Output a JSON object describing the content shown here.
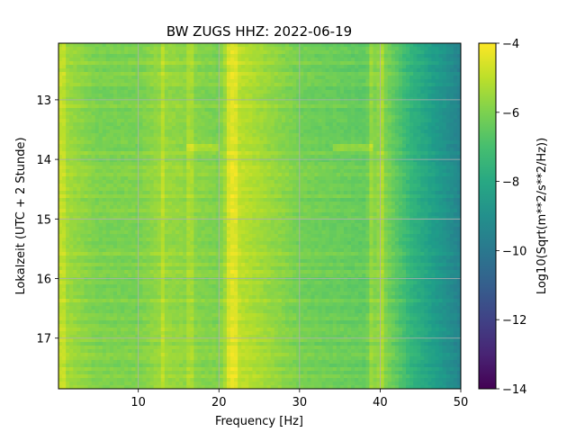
{
  "chart_data": {
    "type": "heatmap",
    "title": "BW ZUGS  HHZ: 2022-06-19",
    "xlabel": "Frequency [Hz]",
    "ylabel": "Lokalzeit (UTC + 2 Stunde)",
    "xlim": [
      0.1,
      50
    ],
    "ylim": [
      12.05,
      17.85
    ],
    "y_inverted": true,
    "x_ticks": [
      10,
      20,
      30,
      40,
      50
    ],
    "x_tick_labels": [
      "10",
      "20",
      "30",
      "40",
      "50"
    ],
    "y_ticks": [
      13,
      14,
      15,
      16,
      17
    ],
    "y_tick_labels": [
      "13",
      "14",
      "15",
      "16",
      "17"
    ],
    "grid": true,
    "colormap": "viridis",
    "colorbar": {
      "label": "Log10(Sqrt(m**2/s**2/Hz))",
      "range": [
        -14,
        -4
      ],
      "ticks": [
        -4,
        -6,
        -8,
        -10,
        -12,
        -14
      ],
      "tick_labels": [
        "−4",
        "−6",
        "−8",
        "−10",
        "−12",
        "−14"
      ]
    },
    "features": {
      "frequency_band_level": [
        {
          "x": 0.5,
          "value": -5.3
        },
        {
          "x": 5,
          "value": -6.0
        },
        {
          "x": 10,
          "value": -6.0
        },
        {
          "x": 13,
          "value": -5.5
        },
        {
          "x": 20,
          "value": -6.0
        },
        {
          "x": 21.5,
          "value": -4.8
        },
        {
          "x": 30,
          "value": -6.1
        },
        {
          "x": 38,
          "value": -6.4
        },
        {
          "x": 40,
          "value": -5.6
        },
        {
          "x": 44,
          "value": -7.5
        },
        {
          "x": 47,
          "value": -8.5
        },
        {
          "x": 50,
          "value": -9.5
        }
      ],
      "strong_lines_hz": [
        0.5,
        13,
        16.5,
        21.5,
        22,
        39,
        40.2
      ],
      "event_rows": [
        {
          "hour": 13.82,
          "x_range": [
            16,
            20
          ]
        },
        {
          "hour": 13.82,
          "x_range": [
            34,
            39
          ]
        }
      ]
    }
  }
}
